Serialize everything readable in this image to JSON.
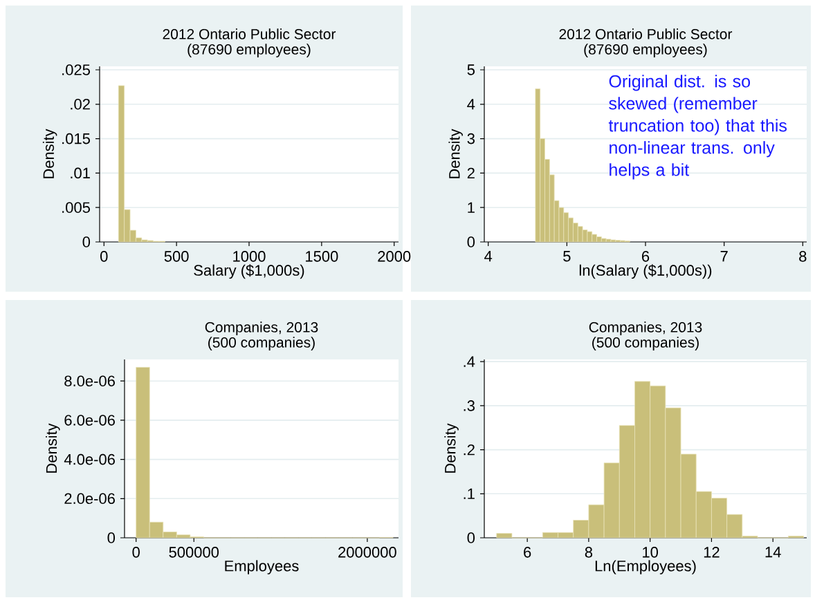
{
  "chart_data": [
    {
      "type": "histogram",
      "title": "2012 Ontario Public Sector",
      "subtitle": "(87690 employees)",
      "xlabel": "Salary ($1,000s)",
      "ylabel": "Density",
      "color": "#c9bf7a",
      "grid": "y",
      "bins": [
        100,
        140,
        180,
        220,
        260,
        300,
        340,
        380,
        420
      ],
      "values": [
        0.0227,
        0.0047,
        0.0017,
        0.0006,
        0.0003,
        0.0002,
        0.0001,
        0.0001
      ],
      "xlim": [
        -30,
        2030
      ],
      "ylim": [
        0,
        0.0255
      ],
      "xticks": [
        0,
        500,
        1000,
        1500,
        2000
      ],
      "yticks": [
        0,
        {
          "value": 0.005,
          "label": ".005"
        },
        {
          "value": 0.01,
          "label": ".01"
        },
        {
          "value": 0.015,
          "label": ".015"
        },
        {
          "value": 0.02,
          "label": ".02"
        },
        {
          "value": 0.025,
          "label": ".025"
        }
      ]
    },
    {
      "type": "histogram",
      "title": "2012 Ontario Public Sector",
      "subtitle": "(87690 employees)",
      "xlabel": "ln(Salary ($1,000s))",
      "ylabel": "Density",
      "color": "#c9bf7a",
      "grid": "y",
      "bins": [
        4.6,
        4.66,
        4.72,
        4.78,
        4.84,
        4.9,
        4.96,
        5.02,
        5.08,
        5.14,
        5.2,
        5.26,
        5.32,
        5.38,
        5.44,
        5.5,
        5.56,
        5.62,
        5.68,
        5.74,
        5.8
      ],
      "values": [
        4.45,
        3.0,
        2.4,
        1.95,
        1.2,
        1.0,
        0.85,
        0.7,
        0.55,
        0.45,
        0.35,
        0.3,
        0.22,
        0.15,
        0.1,
        0.08,
        0.06,
        0.05,
        0.04,
        0.03
      ],
      "xlim": [
        3.95,
        8.05
      ],
      "ylim": [
        0,
        5.1
      ],
      "xticks": [
        4,
        5,
        6,
        7,
        8
      ],
      "yticks": [
        0,
        1,
        2,
        3,
        4,
        5
      ],
      "annotations": [
        "Original dist. is so skewed (remember truncation too) that this non-linear trans. only helps a bit"
      ]
    },
    {
      "type": "histogram",
      "title": "Companies, 2013",
      "subtitle": "(500 companies)",
      "xlabel": "Employees",
      "ylabel": "Density",
      "color": "#c9bf7a",
      "grid": "y",
      "bins": [
        0,
        117000,
        234000,
        351000,
        468000,
        585000,
        702000,
        819000,
        936000,
        1053000,
        1170000,
        1287000,
        1404000,
        1521000,
        1638000,
        1755000,
        1872000,
        1989000,
        2106000,
        2223000
      ],
      "values": [
        8.7e-06,
        8e-07,
        3e-07,
        1.5e-07,
        5e-08,
        0,
        0,
        0,
        0,
        0,
        0,
        0,
        0,
        0,
        0,
        0,
        0,
        0,
        2e-08
      ],
      "xlim": [
        -100000,
        2270000
      ],
      "ylim": [
        0,
        9.1e-06
      ],
      "xticks": [
        0,
        500000,
        2000000
      ],
      "yticks": [
        0,
        {
          "value": 2e-06,
          "label": "2.0e-06"
        },
        {
          "value": 4e-06,
          "label": "4.0e-06"
        },
        {
          "value": 6e-06,
          "label": "6.0e-06"
        },
        {
          "value": 8e-06,
          "label": "8.0e-06"
        }
      ]
    },
    {
      "type": "histogram",
      "title": "Companies, 2013",
      "subtitle": "(500 companies)",
      "xlabel": "Ln(Employees)",
      "ylabel": "Density",
      "color": "#c9bf7a",
      "grid": "y",
      "bins": [
        5,
        5.5,
        6,
        6.5,
        7,
        7.5,
        8,
        8.5,
        9,
        9.5,
        10,
        10.5,
        11,
        11.5,
        12,
        12.5,
        13,
        13.5,
        14,
        14.5,
        15
      ],
      "values": [
        0.01,
        0,
        0,
        0.012,
        0.012,
        0.04,
        0.075,
        0.17,
        0.255,
        0.355,
        0.345,
        0.295,
        0.19,
        0.105,
        0.09,
        0.053,
        0.004,
        0,
        0,
        0.004
      ],
      "xlim": [
        4.6,
        15.1
      ],
      "ylim": [
        0,
        0.405
      ],
      "xticks": [
        6,
        8,
        10,
        12,
        14
      ],
      "yticks": [
        0,
        {
          "value": 0.1,
          "label": ".1"
        },
        {
          "value": 0.2,
          "label": ".2"
        },
        {
          "value": 0.3,
          "label": ".3"
        },
        {
          "value": 0.4,
          "label": ".4"
        }
      ]
    }
  ]
}
